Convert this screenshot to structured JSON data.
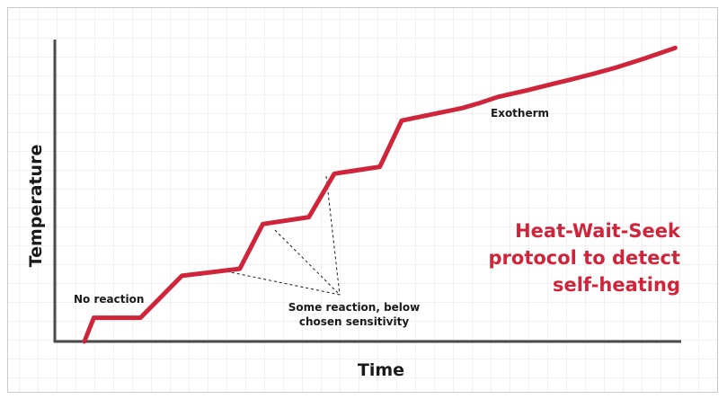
{
  "chart_data": {
    "type": "line",
    "title": "",
    "xlabel": "Time",
    "ylabel": "Temperature",
    "grid": true,
    "axis_ticks": false,
    "line_color": "#d0243a",
    "headline": [
      "Heat-Wait-Seek",
      "protocol to detect",
      "self-heating"
    ],
    "series": [
      {
        "x": [
          0,
          1.6,
          9.5,
          16.5,
          26.3,
          30.2,
          38,
          42.3,
          50,
          53.7,
          64,
          70,
          80,
          90,
          100
        ],
        "y": [
          0,
          8.5,
          8.5,
          23.5,
          26,
          42,
          44.5,
          60,
          62.5,
          79,
          83.5,
          87.5,
          92.5,
          98,
          105
        ]
      }
    ],
    "xlim": [
      -5,
      101
    ],
    "ylim": [
      0,
      108
    ],
    "annotations": [
      {
        "text": [
          "No reaction"
        ]
      },
      {
        "text": [
          "Some reaction, below",
          "chosen sensitivity"
        ]
      },
      {
        "text": [
          "Exotherm"
        ]
      }
    ]
  }
}
